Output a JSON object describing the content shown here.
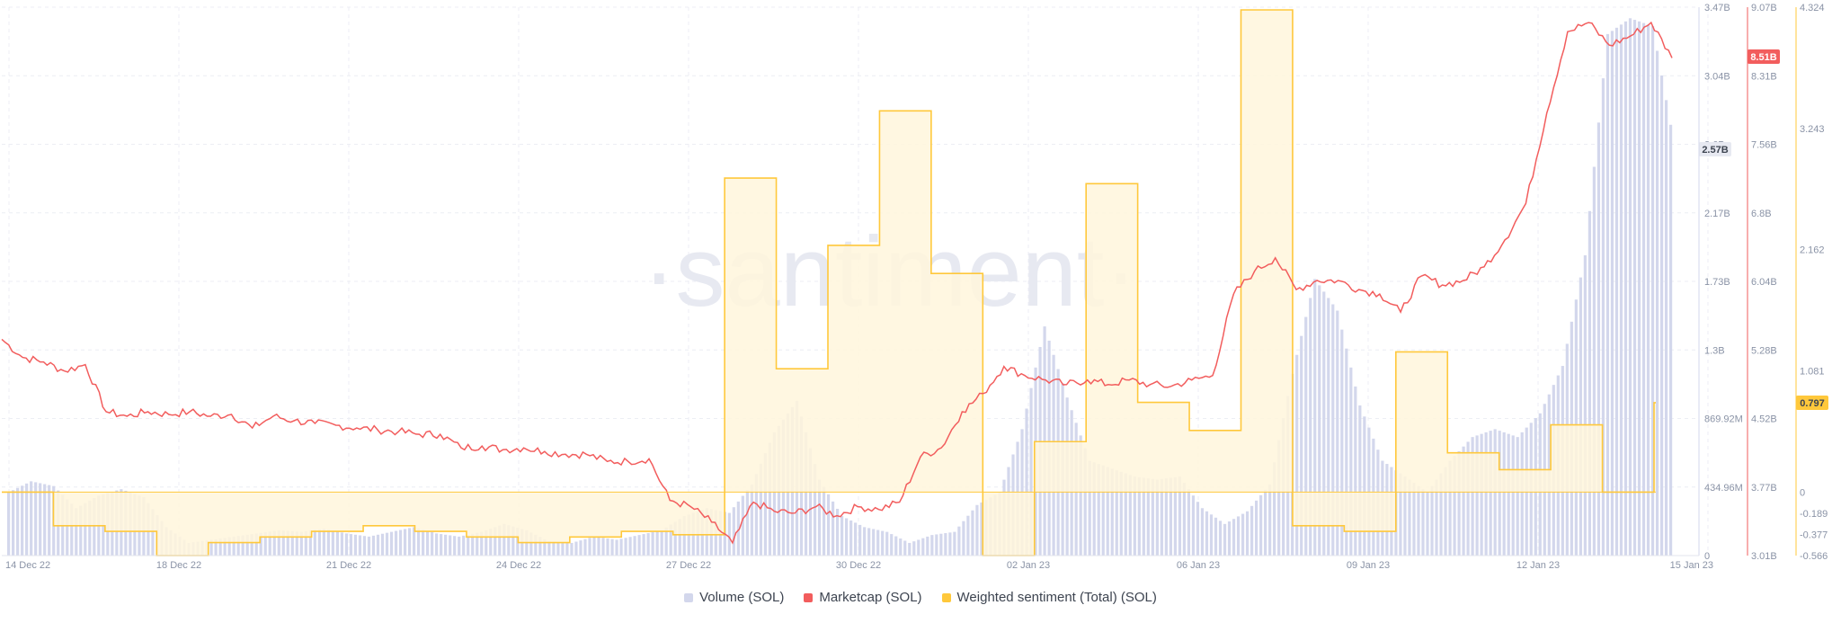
{
  "watermark": "·santiment·",
  "colors": {
    "volume": "#d3d7ec",
    "marketcap": "#f25d5d",
    "sentiment": "#ffc83b",
    "sentiment_fill": "#fff6dc",
    "badge_volume_bg": "#e7e9f1",
    "badge_marketcap_bg": "#f25d5d",
    "badge_sentiment_bg": "#ffc83b"
  },
  "legend": [
    {
      "label": "Volume (SOL)",
      "color": "#d3d7ec"
    },
    {
      "label": "Marketcap (SOL)",
      "color": "#f25d5d"
    },
    {
      "label": "Weighted sentiment (Total) (SOL)",
      "color": "#ffc83b"
    }
  ],
  "badges": {
    "volume": "2.57B",
    "marketcap": "8.51B",
    "sentiment": "0.797"
  },
  "chart_data": {
    "type": "line",
    "title": "",
    "x_labels": [
      "14 Dec 22",
      "18 Dec 22",
      "21 Dec 22",
      "24 Dec 22",
      "27 Dec 22",
      "30 Dec 22",
      "02 Jan 23",
      "06 Jan 23",
      "09 Jan 23",
      "12 Jan 23",
      "15 Jan 23"
    ],
    "axes": {
      "volume": {
        "ticks": [
          "0",
          "434.96M",
          "869.92M",
          "1.3B",
          "1.73B",
          "2.17B",
          "2.6B",
          "3.04B",
          "3.47B"
        ],
        "range": [
          0,
          3.47
        ]
      },
      "marketcap": {
        "ticks": [
          "3.01B",
          "3.77B",
          "4.52B",
          "5.28B",
          "6.04B",
          "6.8B",
          "7.56B",
          "8.31B",
          "9.07B"
        ],
        "range": [
          3.01,
          9.07
        ]
      },
      "sentiment": {
        "ticks": [
          "-0.566",
          "-0.377",
          "-0.189",
          "0",
          "1.081",
          "2.162",
          "3.243",
          "4.324"
        ],
        "range": [
          -0.566,
          4.324
        ]
      }
    },
    "series": [
      {
        "name": "Volume (SOL)",
        "unit": "B",
        "kind": "bars",
        "points": [
          [
            0,
            0.4
          ],
          [
            0.5,
            0.47
          ],
          [
            1,
            0.44
          ],
          [
            1.5,
            0.3
          ],
          [
            2,
            0.38
          ],
          [
            2.5,
            0.42
          ],
          [
            3,
            0.37
          ],
          [
            3.5,
            0.18
          ],
          [
            4,
            0.08
          ],
          [
            4.5,
            0.1
          ],
          [
            5,
            0.12
          ],
          [
            5.5,
            0.14
          ],
          [
            6,
            0.16
          ],
          [
            6.5,
            0.15
          ],
          [
            7,
            0.17
          ],
          [
            7.5,
            0.14
          ],
          [
            8,
            0.12
          ],
          [
            8.5,
            0.15
          ],
          [
            9,
            0.18
          ],
          [
            9.5,
            0.14
          ],
          [
            10,
            0.12
          ],
          [
            10.5,
            0.15
          ],
          [
            11,
            0.2
          ],
          [
            11.5,
            0.16
          ],
          [
            12,
            0.09
          ],
          [
            12.5,
            0.08
          ],
          [
            13,
            0.12
          ],
          [
            13.5,
            0.1
          ],
          [
            14,
            0.13
          ],
          [
            14.5,
            0.16
          ],
          [
            15,
            0.25
          ],
          [
            15.5,
            0.3
          ],
          [
            16,
            0.27
          ],
          [
            16.5,
            0.45
          ],
          [
            17,
            0.78
          ],
          [
            17.5,
            0.98
          ],
          [
            18,
            0.48
          ],
          [
            18.5,
            0.25
          ],
          [
            19,
            0.18
          ],
          [
            19.5,
            0.15
          ],
          [
            20,
            0.08
          ],
          [
            20.5,
            0.13
          ],
          [
            21,
            0.15
          ],
          [
            21.5,
            0.32
          ],
          [
            22,
            0.4
          ],
          [
            22.5,
            0.8
          ],
          [
            23,
            1.45
          ],
          [
            23.5,
            1.0
          ],
          [
            24,
            0.6
          ],
          [
            24.5,
            0.55
          ],
          [
            25,
            0.5
          ],
          [
            25.5,
            0.48
          ],
          [
            26,
            0.5
          ],
          [
            26.5,
            0.3
          ],
          [
            27,
            0.2
          ],
          [
            27.5,
            0.28
          ],
          [
            28,
            0.45
          ],
          [
            28.5,
            1.15
          ],
          [
            29,
            1.75
          ],
          [
            29.5,
            1.55
          ],
          [
            30,
            0.95
          ],
          [
            30.5,
            0.6
          ],
          [
            31,
            0.5
          ],
          [
            31.5,
            0.4
          ],
          [
            32,
            0.6
          ],
          [
            32.5,
            0.75
          ],
          [
            33,
            0.8
          ],
          [
            33.5,
            0.75
          ],
          [
            34,
            0.9
          ],
          [
            34.5,
            1.2
          ],
          [
            35,
            1.9
          ],
          [
            35.5,
            3.3
          ],
          [
            36,
            3.4
          ],
          [
            36.5,
            3.35
          ],
          [
            37,
            2.57
          ]
        ]
      },
      {
        "name": "Marketcap (SOL)",
        "unit": "B",
        "kind": "line",
        "points": [
          [
            0,
            5.4
          ],
          [
            0.5,
            5.2
          ],
          [
            1,
            5.15
          ],
          [
            1.5,
            5.05
          ],
          [
            2,
            5.12
          ],
          [
            2.5,
            4.6
          ],
          [
            3,
            4.55
          ],
          [
            3.5,
            4.6
          ],
          [
            4,
            4.57
          ],
          [
            4.5,
            4.6
          ],
          [
            5,
            4.55
          ],
          [
            5.5,
            4.57
          ],
          [
            6,
            4.42
          ],
          [
            6.5,
            4.55
          ],
          [
            7,
            4.5
          ],
          [
            7.5,
            4.47
          ],
          [
            8,
            4.45
          ],
          [
            8.5,
            4.42
          ],
          [
            9,
            4.4
          ],
          [
            9.5,
            4.38
          ],
          [
            10,
            4.35
          ],
          [
            10.5,
            4.35
          ],
          [
            11,
            4.2
          ],
          [
            11.5,
            4.22
          ],
          [
            12,
            4.18
          ],
          [
            12.5,
            4.2
          ],
          [
            13,
            4.16
          ],
          [
            13.5,
            4.13
          ],
          [
            14,
            4.13
          ],
          [
            14.5,
            4.05
          ],
          [
            15,
            4.05
          ],
          [
            15.5,
            4.08
          ],
          [
            16,
            3.62
          ],
          [
            16.5,
            3.55
          ],
          [
            17,
            3.38
          ],
          [
            17.5,
            3.15
          ],
          [
            18,
            3.6
          ],
          [
            18.5,
            3.5
          ],
          [
            19,
            3.48
          ],
          [
            19.5,
            3.55
          ],
          [
            20,
            3.45
          ],
          [
            20.5,
            3.55
          ],
          [
            21,
            3.52
          ],
          [
            21.5,
            3.6
          ],
          [
            22,
            4.1
          ],
          [
            22.5,
            4.2
          ],
          [
            23,
            4.6
          ],
          [
            23.5,
            4.8
          ],
          [
            24,
            5.1
          ],
          [
            24.5,
            5.0
          ],
          [
            25,
            4.95
          ],
          [
            25.5,
            4.9
          ],
          [
            26,
            4.95
          ],
          [
            26.5,
            4.9
          ],
          [
            27,
            4.95
          ],
          [
            27.5,
            4.9
          ],
          [
            28,
            4.88
          ],
          [
            28.5,
            4.95
          ],
          [
            29,
            5.0
          ],
          [
            29.5,
            5.9
          ],
          [
            30,
            6.15
          ],
          [
            30.5,
            6.3
          ],
          [
            31,
            5.95
          ],
          [
            31.5,
            6.05
          ],
          [
            32,
            6.05
          ],
          [
            32.5,
            5.95
          ],
          [
            33,
            5.9
          ],
          [
            33.5,
            5.7
          ],
          [
            34,
            6.1
          ],
          [
            34.5,
            6.0
          ],
          [
            35,
            6.05
          ],
          [
            35.5,
            6.2
          ],
          [
            36,
            6.5
          ],
          [
            36.5,
            6.9
          ],
          [
            37,
            7.9
          ],
          [
            37.5,
            8.8
          ],
          [
            38,
            8.9
          ],
          [
            38.5,
            8.65
          ],
          [
            39,
            8.75
          ],
          [
            39.5,
            8.9
          ],
          [
            40,
            8.51
          ]
        ]
      },
      {
        "name": "Weighted sentiment (Total) (SOL)",
        "kind": "step",
        "points": [
          [
            0,
            0.0
          ],
          [
            1,
            -0.3
          ],
          [
            2,
            -0.35
          ],
          [
            3,
            -0.566
          ],
          [
            4,
            -0.45
          ],
          [
            5,
            -0.4
          ],
          [
            6,
            -0.35
          ],
          [
            7,
            -0.3
          ],
          [
            8,
            -0.35
          ],
          [
            9,
            -0.4
          ],
          [
            10,
            -0.45
          ],
          [
            11,
            -0.4
          ],
          [
            12,
            -0.35
          ],
          [
            13,
            -0.38
          ],
          [
            14,
            2.8
          ],
          [
            15,
            1.1
          ],
          [
            16,
            2.2
          ],
          [
            17,
            3.4
          ],
          [
            18,
            1.95
          ],
          [
            19,
            -0.566
          ],
          [
            20,
            0.45
          ],
          [
            21,
            2.75
          ],
          [
            22,
            0.8
          ],
          [
            23,
            0.55
          ],
          [
            24,
            4.3
          ],
          [
            25,
            -0.3
          ],
          [
            26,
            -0.35
          ],
          [
            27,
            1.25
          ],
          [
            28,
            0.35
          ],
          [
            29,
            0.2
          ],
          [
            30,
            0.6
          ],
          [
            31,
            0.0
          ],
          [
            32,
            0.797
          ]
        ]
      }
    ],
    "grid": true,
    "legend_position": "bottom"
  }
}
